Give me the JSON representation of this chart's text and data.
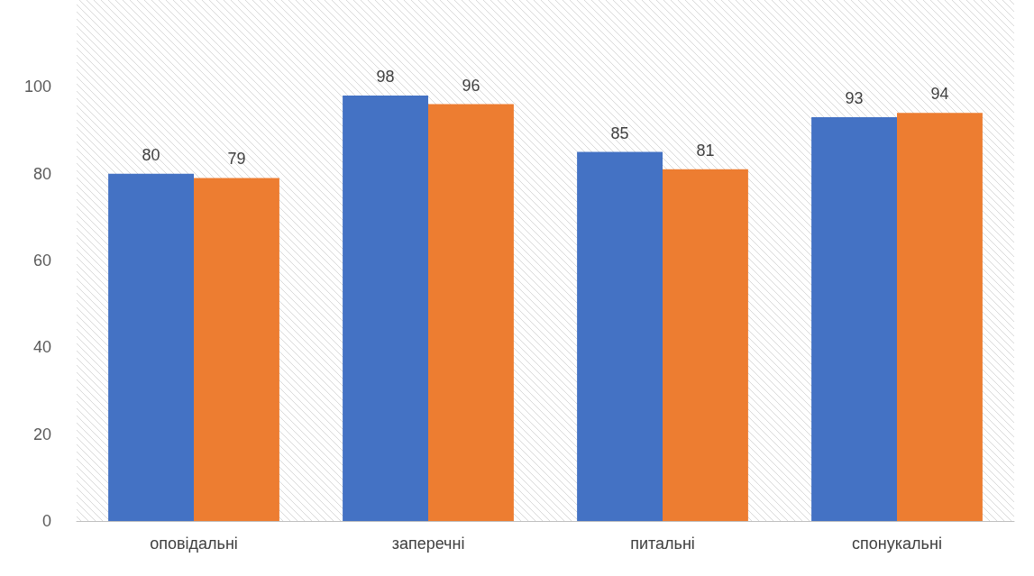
{
  "chart_data": {
    "type": "bar",
    "categories": [
      "оповідальні",
      "заперечні",
      "питальні",
      "спонукальні"
    ],
    "series": [
      {
        "color": "#4472c4",
        "values": [
          80,
          98,
          85,
          93
        ]
      },
      {
        "color": "#ed7d31",
        "values": [
          79,
          96,
          81,
          94
        ]
      }
    ],
    "ylim": [
      0,
      120
    ],
    "yticks": [
      0,
      20,
      40,
      60,
      80,
      100
    ],
    "data_labels": true,
    "grid": false
  }
}
